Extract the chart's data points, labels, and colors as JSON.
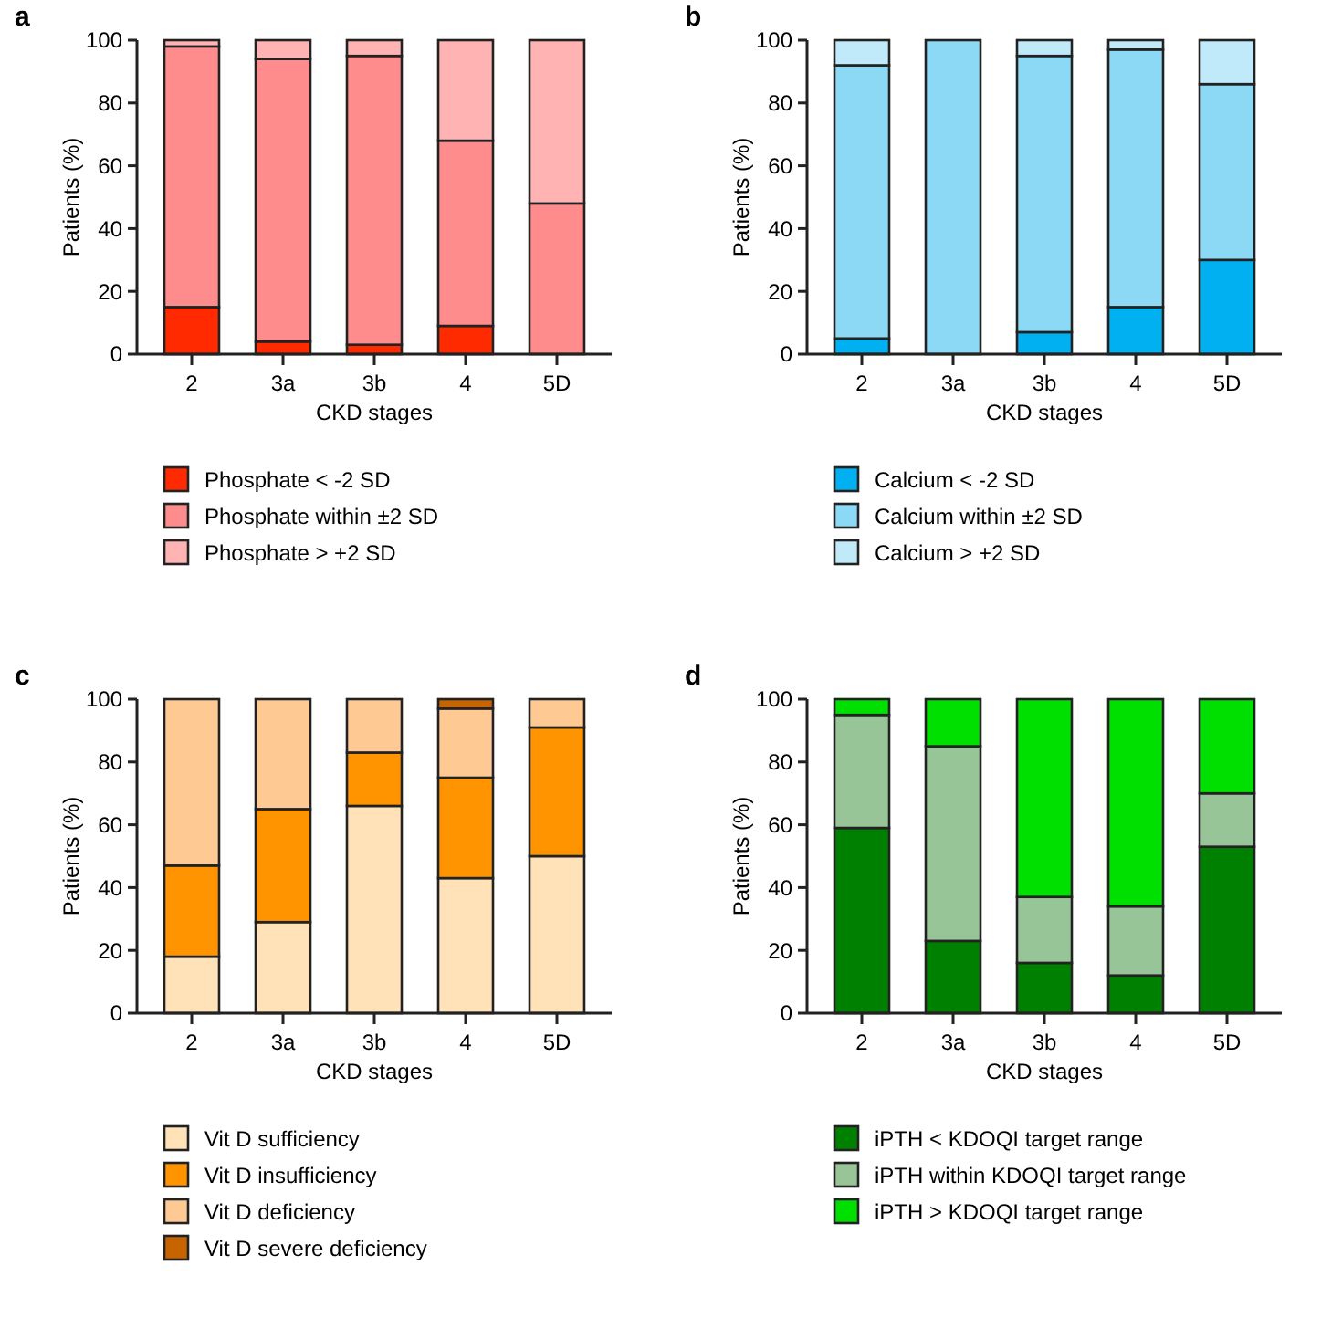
{
  "chart_data": [
    {
      "type": "bar",
      "title": "a",
      "xlabel": "CKD stages",
      "ylabel": "Patients (%)",
      "categories": [
        "2",
        "3a",
        "3b",
        "4",
        "5D"
      ],
      "stacked": true,
      "legend": "bottom",
      "ylim": [
        0,
        100
      ],
      "yticks": [
        0,
        20,
        40,
        60,
        80,
        100
      ],
      "series": [
        {
          "name": "Phosphate < -2 SD",
          "color": "#ff2a00",
          "values": [
            15,
            4,
            3,
            9,
            0
          ]
        },
        {
          "name": "Phosphate within ±2 SD",
          "color": "#ff8c8c",
          "values": [
            83,
            90,
            92,
            59,
            48
          ]
        },
        {
          "name": "Phosphate > +2 SD",
          "color": "#ffb3b3",
          "values": [
            2,
            6,
            5,
            32,
            52
          ]
        }
      ]
    },
    {
      "type": "bar",
      "title": "b",
      "xlabel": "CKD stages",
      "ylabel": "Patients (%)",
      "categories": [
        "2",
        "3a",
        "3b",
        "4",
        "5D"
      ],
      "stacked": true,
      "legend": "bottom",
      "ylim": [
        0,
        100
      ],
      "yticks": [
        0,
        20,
        40,
        60,
        80,
        100
      ],
      "series": [
        {
          "name": "Calcium < -2 SD",
          "color": "#00b0f0",
          "values": [
            5,
            0,
            7,
            15,
            30
          ]
        },
        {
          "name": "Calcium within ±2 SD",
          "color": "#8cd9f5",
          "values": [
            87,
            100,
            88,
            82,
            56
          ]
        },
        {
          "name": "Calcium > +2 SD",
          "color": "#c0eafa",
          "values": [
            8,
            0,
            5,
            3,
            14
          ]
        }
      ]
    },
    {
      "type": "bar",
      "title": "c",
      "xlabel": "CKD stages",
      "ylabel": "Patients (%)",
      "categories": [
        "2",
        "3a",
        "3b",
        "4",
        "5D"
      ],
      "stacked": true,
      "legend": "bottom",
      "ylim": [
        0,
        100
      ],
      "yticks": [
        0,
        20,
        40,
        60,
        80,
        100
      ],
      "series": [
        {
          "name": "Vit D sufficiency",
          "color": "#ffe2b8",
          "values": [
            18,
            29,
            66,
            43,
            50
          ]
        },
        {
          "name": "Vit D insufficiency",
          "color": "#ff9400",
          "values": [
            29,
            36,
            17,
            32,
            41
          ]
        },
        {
          "name": "Vit D deficiency",
          "color": "#ffc994",
          "values": [
            53,
            35,
            17,
            22,
            9
          ]
        },
        {
          "name": "Vit D severe deficiency",
          "color": "#c86400",
          "values": [
            0,
            0,
            0,
            3,
            0
          ]
        }
      ]
    },
    {
      "type": "bar",
      "title": "d",
      "xlabel": "CKD stages",
      "ylabel": "Patients (%)",
      "categories": [
        "2",
        "3a",
        "3b",
        "4",
        "5D"
      ],
      "stacked": true,
      "legend": "bottom",
      "ylim": [
        0,
        100
      ],
      "yticks": [
        0,
        20,
        40,
        60,
        80,
        100
      ],
      "series": [
        {
          "name": "iPTH < KDOQI target range",
          "color": "#008000",
          "values": [
            59,
            23,
            16,
            12,
            53
          ]
        },
        {
          "name": "iPTH within KDOQI target range",
          "color": "#97c597",
          "values": [
            36,
            62,
            21,
            22,
            17
          ]
        },
        {
          "name": "iPTH > KDOQI target range",
          "color": "#00e000",
          "values": [
            5,
            15,
            63,
            66,
            30
          ]
        }
      ]
    }
  ]
}
